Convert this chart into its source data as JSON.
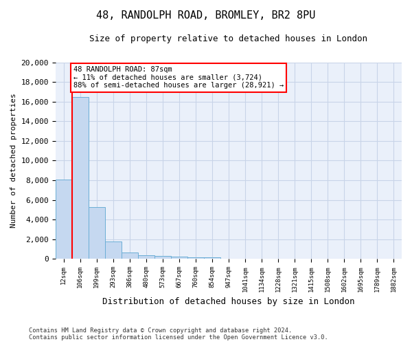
{
  "title": "48, RANDOLPH ROAD, BROMLEY, BR2 8PU",
  "subtitle": "Size of property relative to detached houses in London",
  "xlabel": "Distribution of detached houses by size in London",
  "ylabel": "Number of detached properties",
  "bar_color": "#c5d8f0",
  "bar_edge_color": "#6baed6",
  "categories": [
    "12sqm",
    "106sqm",
    "199sqm",
    "293sqm",
    "386sqm",
    "480sqm",
    "573sqm",
    "667sqm",
    "760sqm",
    "854sqm",
    "947sqm",
    "1041sqm",
    "1134sqm",
    "1228sqm",
    "1321sqm",
    "1415sqm",
    "1508sqm",
    "1602sqm",
    "1695sqm",
    "1789sqm",
    "1882sqm"
  ],
  "values": [
    8100,
    16500,
    5300,
    1750,
    650,
    350,
    280,
    200,
    190,
    150,
    0,
    0,
    0,
    0,
    0,
    0,
    0,
    0,
    0,
    0,
    0
  ],
  "ylim": [
    0,
    20000
  ],
  "yticks": [
    0,
    2000,
    4000,
    6000,
    8000,
    10000,
    12000,
    14000,
    16000,
    18000,
    20000
  ],
  "annotation_line1": "48 RANDOLPH ROAD: 87sqm",
  "annotation_line2": "← 11% of detached houses are smaller (3,724)",
  "annotation_line3": "88% of semi-detached houses are larger (28,921) →",
  "vline_color": "red",
  "ann_box_color": "red",
  "grid_color": "#c8d4e8",
  "background_color": "#eaf0fa",
  "footer_line1": "Contains HM Land Registry data © Crown copyright and database right 2024.",
  "footer_line2": "Contains public sector information licensed under the Open Government Licence v3.0.",
  "title_fontsize": 11,
  "subtitle_fontsize": 9,
  "ylabel_fontsize": 8,
  "xlabel_fontsize": 9,
  "tick_fontsize": 8,
  "xtick_fontsize": 6.5
}
